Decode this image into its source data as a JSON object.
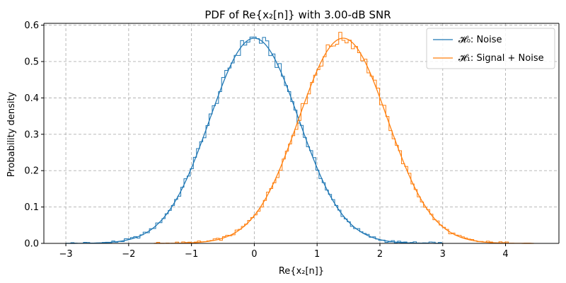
{
  "chart_data": {
    "type": "line",
    "title": "PDF of Re{x₂[n]} with 3.00-dB SNR",
    "xlabel": "Re{x₂[n]}",
    "ylabel": "Probability density",
    "xlim": [
      -3.35,
      4.85
    ],
    "ylim": [
      0.0,
      0.605
    ],
    "xticks": [
      -3,
      -2,
      -1,
      0,
      1,
      2,
      3,
      4
    ],
    "xtick_labels": [
      "−3",
      "−2",
      "−1",
      "0",
      "1",
      "2",
      "3",
      "4"
    ],
    "yticks": [
      0.0,
      0.1,
      0.2,
      0.3,
      0.4,
      0.5,
      0.6
    ],
    "ytick_labels": [
      "0.0",
      "0.1",
      "0.2",
      "0.3",
      "0.4",
      "0.5",
      "0.6"
    ],
    "grid": true,
    "legend_position": "top-right",
    "series": [
      {
        "name": "𝓗₀: Noise",
        "color": "#1f77b4",
        "mean": 0.0,
        "std": 0.7071,
        "peak": 0.564,
        "x_range": [
          -3.0,
          3.0
        ],
        "curve": "gaussian pdf with overlaid step histogram"
      },
      {
        "name": "𝓗₁: Signal + Noise",
        "color": "#ff7f0e",
        "mean": 1.414,
        "std": 0.7071,
        "peak": 0.564,
        "x_range": [
          -1.6,
          4.45
        ],
        "curve": "gaussian pdf with overlaid step histogram"
      }
    ]
  }
}
